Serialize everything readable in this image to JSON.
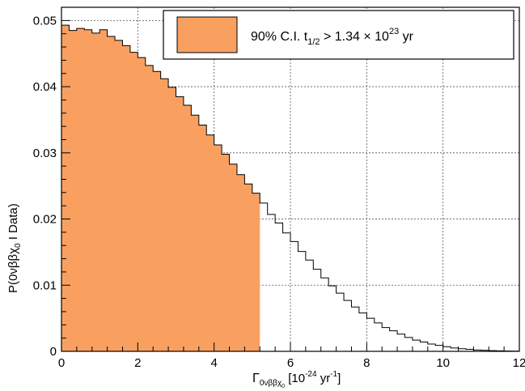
{
  "chart_data": {
    "type": "histogram",
    "xlabel": {
      "base": "Γ",
      "sub": "0νββχ",
      "subsub": "0",
      "unit_pre": " [10",
      "unit_sup1": "-24",
      "unit_mid": " yr",
      "unit_sup2": "-1",
      "unit_post": "]"
    },
    "ylabel": {
      "pre": "P(0νββχ",
      "sub": "0",
      "post": " I Data)"
    },
    "xlim": [
      0,
      12
    ],
    "ylim": [
      0,
      0.052
    ],
    "grid": true,
    "legend_position": "top-right",
    "x_ticks": [
      0,
      2,
      4,
      6,
      8,
      10,
      12
    ],
    "x_tick_labels": [
      "0",
      "2",
      "4",
      "6",
      "8",
      "10",
      "12"
    ],
    "y_ticks": [
      0,
      0.01,
      0.02,
      0.03,
      0.04,
      0.05
    ],
    "y_tick_labels": [
      "0",
      "0.01",
      "0.02",
      "0.03",
      "0.04",
      "0.05"
    ],
    "bin_width": 0.2,
    "bin_start": 0,
    "values": [
      0.0493,
      0.0485,
      0.0488,
      0.0486,
      0.0481,
      0.0486,
      0.0476,
      0.047,
      0.0462,
      0.0452,
      0.0444,
      0.0432,
      0.0423,
      0.0412,
      0.0399,
      0.0385,
      0.0372,
      0.0357,
      0.0342,
      0.0327,
      0.0312,
      0.0298,
      0.0283,
      0.0267,
      0.0253,
      0.0239,
      0.0224,
      0.0207,
      0.0194,
      0.0179,
      0.0166,
      0.0151,
      0.0138,
      0.0124,
      0.0111,
      0.0099,
      0.0088,
      0.0077,
      0.0067,
      0.0058,
      0.005,
      0.0043,
      0.0036,
      0.0031,
      0.0026,
      0.0021,
      0.0017,
      0.0014,
      0.0011,
      0.0009,
      0.0007,
      0.0005,
      0.0004,
      0.0003,
      0.0002,
      0.00015,
      0.0001,
      7e-05,
      5e-05,
      3e-05
    ],
    "shaded_upper_limit": 5.2,
    "shade_color": "#f9a061",
    "legend": {
      "pre": "90% C.I. t",
      "sub": "1/2",
      "mid": " > 1.34 × 10",
      "sup": "23",
      "post": " yr"
    }
  }
}
